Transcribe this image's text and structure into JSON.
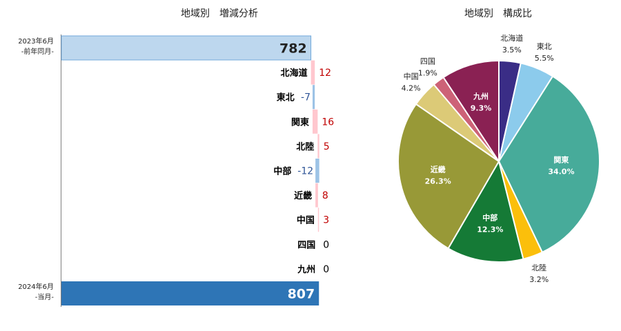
{
  "colors": {
    "prev_bar": "#bdd7ee",
    "curr_bar": "#2e75b6",
    "increase": "#ffc7ce",
    "decrease": "#9dc3e6",
    "increase_text": "#c00000",
    "decrease_text": "#2f5597",
    "neutral_text": "#000000",
    "axis": "#7f7f7f"
  },
  "chart_data": [
    {
      "type": "bar",
      "subtype": "waterfall",
      "title": "地域別　増減分析",
      "start": {
        "label_line1": "2023年6月",
        "label_line2": "-前年同月-",
        "value": 782
      },
      "steps": [
        {
          "category": "北海道",
          "value": 12
        },
        {
          "category": "東北",
          "value": -7
        },
        {
          "category": "関東",
          "value": 16
        },
        {
          "category": "北陸",
          "value": 5
        },
        {
          "category": "中部",
          "value": -12
        },
        {
          "category": "近畿",
          "value": 8
        },
        {
          "category": "中国",
          "value": 3
        },
        {
          "category": "四国",
          "value": 0
        },
        {
          "category": "九州",
          "value": 0
        }
      ],
      "end": {
        "label_line1": "2024年6月",
        "label_line2": "-当月-",
        "value": 807
      },
      "value_axis_visible": false
    },
    {
      "type": "pie",
      "title": "地域別　構成比",
      "slices": [
        {
          "name": "北海道",
          "label": "3.5%",
          "value": 3.5,
          "color": "#3a2d86",
          "label_inside": false
        },
        {
          "name": "東北",
          "label": "5.5%",
          "value": 5.5,
          "color": "#8ccbec",
          "label_inside": false
        },
        {
          "name": "関東",
          "label": "34.0%",
          "value": 34.0,
          "color": "#47ab9a",
          "label_inside": true
        },
        {
          "name": "北陸",
          "label": "3.2%",
          "value": 3.2,
          "color": "#fbbf0b",
          "label_inside": false
        },
        {
          "name": "中部",
          "label": "12.3%",
          "value": 12.3,
          "color": "#157a36",
          "label_inside": true
        },
        {
          "name": "近畿",
          "label": "26.3%",
          "value": 26.3,
          "color": "#989937",
          "label_inside": true
        },
        {
          "name": "中国",
          "label": "4.2%",
          "value": 4.2,
          "color": "#dcca77",
          "label_inside": false
        },
        {
          "name": "四国",
          "label": "1.9%",
          "value": 1.9,
          "color": "#cd6277",
          "label_inside": false
        },
        {
          "name": "九州",
          "label": "9.3%",
          "value": 9.3,
          "color": "#8a2153",
          "label_inside": true
        }
      ]
    }
  ]
}
